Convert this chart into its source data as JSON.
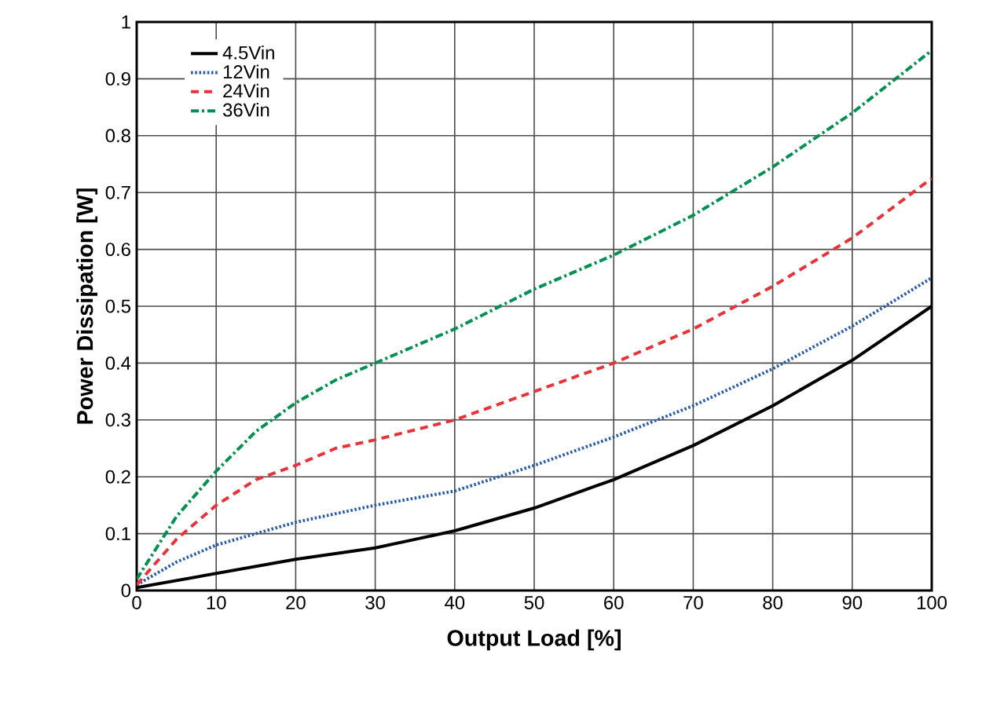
{
  "chart_data": {
    "type": "line",
    "xlabel": "Output Load [%]",
    "ylabel": "Power Dissipation [W]",
    "xlim": [
      0,
      100
    ],
    "ylim": [
      0,
      1
    ],
    "xticks": [
      0,
      10,
      20,
      30,
      40,
      50,
      60,
      70,
      80,
      90,
      100
    ],
    "yticks": [
      0,
      0.1,
      0.2,
      0.3,
      0.4,
      0.5,
      0.6,
      0.7,
      0.8,
      0.9,
      1
    ],
    "grid": true,
    "legend": "top left",
    "series": [
      {
        "name": "4.5Vin",
        "color": "#000000",
        "line_style": "solid",
        "x": [
          0,
          10,
          20,
          30,
          35,
          40,
          50,
          60,
          70,
          80,
          90,
          100
        ],
        "values": [
          0.005,
          0.03,
          0.055,
          0.075,
          0.09,
          0.105,
          0.145,
          0.195,
          0.255,
          0.325,
          0.405,
          0.5
        ]
      },
      {
        "name": "12Vin",
        "color": "#2a5caa",
        "line_style": "dotted",
        "x": [
          0,
          5,
          10,
          20,
          30,
          40,
          50,
          60,
          70,
          80,
          90,
          100
        ],
        "values": [
          0.01,
          0.05,
          0.08,
          0.12,
          0.15,
          0.175,
          0.22,
          0.27,
          0.325,
          0.39,
          0.465,
          0.55
        ]
      },
      {
        "name": "24Vin",
        "color": "#e8333a",
        "line_style": "dashed",
        "x": [
          0,
          5,
          10,
          15,
          20,
          25,
          30,
          40,
          50,
          60,
          70,
          80,
          90,
          100
        ],
        "values": [
          0.01,
          0.09,
          0.15,
          0.195,
          0.22,
          0.25,
          0.265,
          0.3,
          0.35,
          0.4,
          0.46,
          0.535,
          0.62,
          0.725
        ]
      },
      {
        "name": "36Vin",
        "color": "#009150",
        "line_style": "dashdot",
        "x": [
          0,
          5,
          10,
          15,
          20,
          25,
          30,
          40,
          50,
          60,
          70,
          80,
          90,
          100
        ],
        "values": [
          0.02,
          0.13,
          0.21,
          0.28,
          0.33,
          0.37,
          0.4,
          0.46,
          0.53,
          0.59,
          0.66,
          0.745,
          0.84,
          0.95
        ]
      }
    ]
  }
}
